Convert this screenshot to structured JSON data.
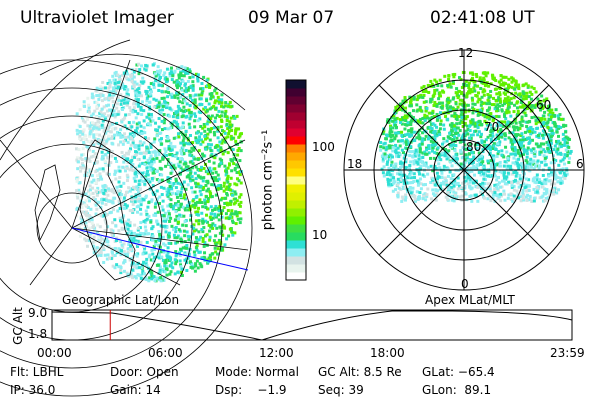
{
  "header": {
    "title": "Ultraviolet Imager",
    "date": "09 Mar 07",
    "time": "02:41:08 UT"
  },
  "colorbar": {
    "label": "photon cm⁻²s⁻¹",
    "ticks": [
      "100",
      "10"
    ],
    "colors": [
      "#ffffff",
      "#e8f4ee",
      "#d2e2e2",
      "#8eeef2",
      "#2ee0d4",
      "#28dc60",
      "#40e040",
      "#60f000",
      "#90f000",
      "#c0f000",
      "#e0f000",
      "#f0f000",
      "#ffff80",
      "#ffe000",
      "#ffc800",
      "#ffa800",
      "#ff8000",
      "#ff0000",
      "#e00030",
      "#c00030",
      "#a00030",
      "#800030",
      "#600030",
      "#400030",
      "#101030"
    ]
  },
  "left_panel": {
    "caption": "Geographic Lat/Lon"
  },
  "right_panel": {
    "caption": "Apex MLat/MLT",
    "mlt_labels": [
      "12",
      "18",
      "6",
      "0"
    ],
    "mlat_labels": [
      "80",
      "70",
      "60"
    ]
  },
  "timeline": {
    "ylabel": "GC Alt",
    "yticks": [
      "9.0",
      "1.8"
    ],
    "xticks": [
      "00:00",
      "06:00",
      "12:00",
      "18:00",
      "23:59"
    ],
    "current_time_fraction": 0.112,
    "marker_color": "#cc0000"
  },
  "info": {
    "row1": [
      "Flt: LBHL",
      "Door: Open",
      "Mode: Normal",
      "GC Alt: 8.5 Re",
      "GLat: −65.4"
    ],
    "row2": [
      "IP: 36.0",
      "Gain: 14",
      "Dsp:    −1.9",
      "Seq: 39",
      "GLon:  89.1"
    ]
  }
}
